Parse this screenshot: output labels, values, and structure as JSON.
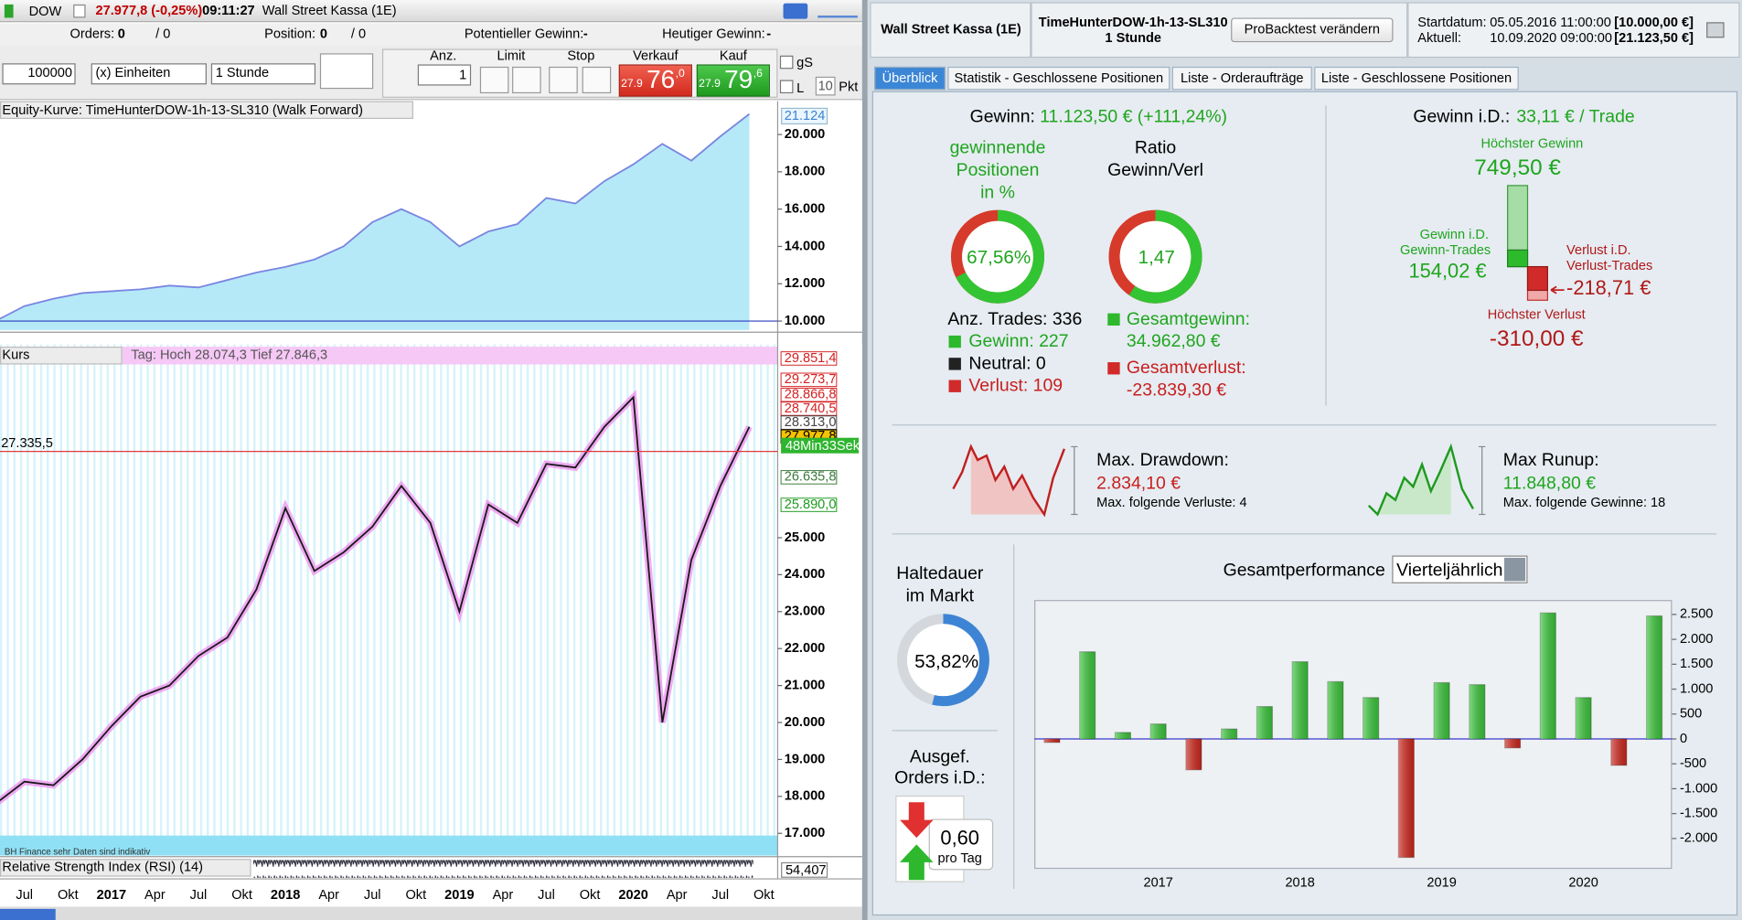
{
  "top_bar": {
    "symbol": "DOW",
    "price": "27.977,8 (-0,25%)",
    "time": "09:11:27",
    "instrument": "Wall Street Kassa (1E)"
  },
  "status_bar": {
    "orders_label": "Orders:",
    "orders": "0",
    "orders_sep": "/ 0",
    "position_label": "Position:",
    "position": "0",
    "position_sep": "/ 0",
    "pot_label": "Potentieller Gewinn:",
    "pot": "-",
    "today_label": "Heutiger Gewinn:",
    "today": "-"
  },
  "order_panel": {
    "quantity": "100000",
    "unit": "(x) Einheiten",
    "timeframe": "1 Stunde",
    "anz_label": "Anz.",
    "anz": "1",
    "limit": "Limit",
    "stop": "Stop",
    "sell_label": "Verkauf",
    "buy_label": "Kauf",
    "sell_small": "27.9",
    "sell_big": "76",
    "sell_frac": ",0",
    "buy_small": "27.9",
    "buy_big": "79",
    "buy_frac": ",6",
    "gs": "gS",
    "l": "L",
    "pkt_value": "10",
    "pkt": "Pkt"
  },
  "equity_panel": {
    "title": "Equity-Kurve: TimeHunterDOW-1h-13-SL310 (Walk Forward)",
    "last": "21.124"
  },
  "price_panel": {
    "title": "Kurs",
    "day_info": "Tag: Hoch 28.074,3 Tief 27.846,3",
    "countdown": "48Min33Sek",
    "source": "BH Finance sehr Daten sind indikativ"
  },
  "rsi_panel": {
    "title": "Relative Strength Index (RSI) (14)",
    "last": "54,407"
  },
  "time_axis": [
    "Jul",
    "Okt",
    "2017",
    "Apr",
    "Jul",
    "Okt",
    "2018",
    "Apr",
    "Jul",
    "Okt",
    "2019",
    "Apr",
    "Jul",
    "Okt",
    "2020",
    "Apr",
    "Jul",
    "Okt"
  ],
  "header": {
    "instrument": "Wall Street Kassa (1E)",
    "system": "TimeHunterDOW-1h-13-SL310",
    "timeframe": "1 Stunde",
    "button": "ProBacktest verändern",
    "start_label": "Startdatum:",
    "start_date": "05.05.2016 11:00:00",
    "start_capital": "[10.000,00 €]",
    "current_label": "Aktuell:",
    "current_date": "10.09.2020 09:00:00",
    "current_capital": "[21.123,50 €]"
  },
  "tabs": [
    "Überblick",
    "Statistik - Geschlossene Positionen",
    "Liste - Orderaufträge",
    "Liste - Geschlossene Positionen"
  ],
  "overview": {
    "gain_label": "Gewinn:",
    "gain": "11.123,50 € (+111,24%)",
    "win_title": [
      "gewinnende",
      "Positionen",
      "in %"
    ],
    "win_pct": {
      "value": 67.56,
      "label": "67,56%"
    },
    "ratio_title": [
      "Ratio",
      "Gewinn/Verl"
    ],
    "ratio": {
      "value": 1.47,
      "label": "1,47"
    },
    "trades": "Anz. Trades: 336",
    "wins": "Gewinn: 227",
    "neutral": "Neutral: 0",
    "losses": "Verlust: 109",
    "total_gain_label": "Gesamtgewinn:",
    "total_gain": "34.962,80 €",
    "total_loss_label": "Gesamtverlust:",
    "total_loss": "-23.839,30 €",
    "avg_label": "Gewinn i.D.:",
    "avg": "33,11 € / Trade",
    "max_gain_label": "Höchster Gewinn",
    "max_gain": {
      "value": 749.5,
      "label": "749,50 €"
    },
    "avg_win_label": [
      "Gewinn i.D.",
      "Gewinn-Trades"
    ],
    "avg_win": {
      "value": 154.02,
      "label": "154,02 €"
    },
    "avg_loss_label": [
      "Verlust i.D.",
      "Verlust-Trades"
    ],
    "avg_loss": {
      "value": -218.71,
      "label": "-218,71 €"
    },
    "max_loss_label": "Höchster Verlust",
    "max_loss": {
      "value": -310,
      "label": "-310,00 €"
    },
    "drawdown_label": "Max. Drawdown:",
    "drawdown": "2.834,10 €",
    "drawdown_note": "Max. folgende Verluste: 4",
    "runup_label": "Max Runup:",
    "runup": "11.848,80 €",
    "runup_note": "Max. folgende Gewinne: 18",
    "exposure_label": [
      "Haltedauer",
      "im Markt"
    ],
    "exposure": {
      "value": 53.82,
      "label": "53,82%"
    },
    "orders_label": [
      "Ausgef.",
      "Orders i.D.:"
    ],
    "orders_per_day": "0,60",
    "orders_unit": "pro Tag",
    "perf_label": "Gesamtperformance",
    "perf_period": "Vierteljährlich"
  },
  "chart_data": [
    {
      "type": "bar",
      "categories": [
        null,
        null,
        null,
        "2017",
        null,
        null,
        null,
        "2018",
        null,
        null,
        null,
        "2019",
        null,
        null,
        null,
        "2020",
        null,
        null
      ],
      "values": [
        -70,
        1750,
        130,
        300,
        -620,
        200,
        650,
        1550,
        1150,
        830,
        -2380,
        1130,
        1090,
        -180,
        2530,
        830,
        -530,
        2470
      ],
      "color": "#3cc83c",
      "negative_color": "#d0281e",
      "zero_color": "#3a3ad0",
      "ylim": [
        -2610,
        2790
      ],
      "yticks": [
        {
          "value": 2500,
          "label": "2.500"
        },
        {
          "value": 2000,
          "label": "2.000"
        },
        {
          "value": 1500,
          "label": "1.500"
        },
        {
          "value": 1000,
          "label": "1.000"
        },
        500,
        0,
        -500,
        {
          "value": -1000,
          "label": "-1.000"
        },
        {
          "value": -1500,
          "label": "-1.500"
        },
        {
          "value": -2000,
          "label": "-2.000"
        }
      ]
    },
    {
      "type": "area",
      "values": [
        10000,
        10800,
        11200,
        11500,
        11600,
        11700,
        11900,
        11800,
        12200,
        12600,
        12900,
        13300,
        14000,
        15300,
        16000,
        15300,
        14000,
        14800,
        15200,
        16600,
        16300,
        17500,
        18400,
        19500,
        18600,
        19900,
        21100
      ],
      "color": "#b5e9f8",
      "line_color": "#7a86e0",
      "ref_color": "#2b3cc0",
      "ylim": [
        9520,
        21790
      ],
      "yticks": [
        {
          "value": 10000,
          "label": "10.000"
        },
        {
          "value": 12000,
          "label": "12.000"
        },
        {
          "value": 14000,
          "label": "14.000"
        },
        {
          "value": 16000,
          "label": "16.000"
        },
        {
          "value": 18000,
          "label": "18.000"
        },
        {
          "value": 20000,
          "label": "20.000"
        }
      ]
    },
    {
      "type": "line",
      "values": [
        17800,
        18400,
        18300,
        19000,
        19900,
        20700,
        21000,
        21800,
        22300,
        23600,
        25800,
        24100,
        24600,
        25300,
        26400,
        25400,
        23000,
        25900,
        25400,
        27000,
        26900,
        28000,
        28800,
        20000,
        24400,
        26400,
        28000
      ],
      "color": "#1a1a1a",
      "halo_color": "#ee88ee",
      "ylim": [
        16940,
        29990
      ],
      "yticks": [
        {
          "value": 17000,
          "label": "17.000"
        },
        {
          "value": 18000,
          "label": "18.000"
        },
        {
          "value": 19000,
          "label": "19.000"
        },
        {
          "value": 20000,
          "label": "20.000"
        },
        {
          "value": 21000,
          "label": "21.000"
        },
        {
          "value": 22000,
          "label": "22.000"
        },
        {
          "value": 23000,
          "label": "23.000"
        },
        {
          "value": 24000,
          "label": "24.000"
        },
        {
          "value": 25000,
          "label": "25.000"
        }
      ],
      "hline": {
        "value": 27335.5,
        "label": "27.335,5",
        "color": "#e03a3a"
      },
      "price_tags": [
        {
          "value": 29851.4,
          "label": "29.851,4",
          "color": "#d42020",
          "fill": "#ffffff"
        },
        {
          "value": 29273.7,
          "label": "29.273,7",
          "color": "#d42020",
          "fill": "#ffffff"
        },
        {
          "value": 28866.8,
          "label": "28.866,8",
          "color": "#d42020",
          "fill": "#ffffff"
        },
        {
          "value": 28740.5,
          "label": "28.740,5",
          "color": "#d42020",
          "fill": "#ffffff"
        },
        {
          "value": 28313.0,
          "label": "28.313,0",
          "color": "#444444",
          "fill": "#ffffff"
        },
        {
          "value": 27977.8,
          "label": "27.977,8",
          "color": "#000000",
          "fill": "#f5c400"
        },
        {
          "value": 26635.8,
          "label": "26.635,8",
          "color": "#3a7a3a",
          "fill": "#ffffff"
        },
        {
          "value": 25890.0,
          "label": "25.890,0",
          "color": "#1e9a1e",
          "fill": "#ffffff"
        }
      ]
    }
  ]
}
